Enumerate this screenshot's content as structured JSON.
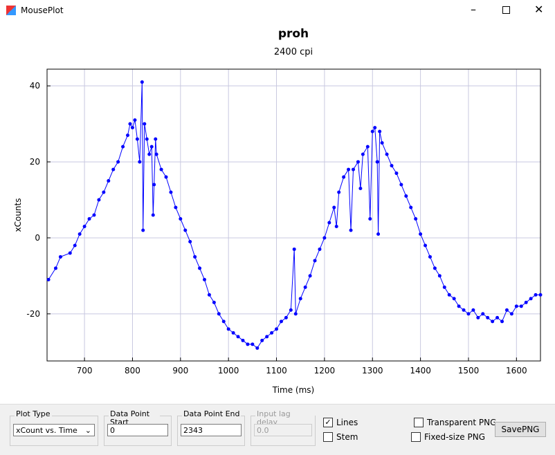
{
  "window": {
    "title": "MousePlot"
  },
  "chart_data": {
    "type": "line",
    "title": "proh",
    "subtitle": "2400 cpi",
    "x_label": "Time (ms)",
    "y_label": "xCounts",
    "x": [
      625,
      640,
      650,
      670,
      680,
      690,
      700,
      710,
      720,
      730,
      740,
      750,
      760,
      770,
      780,
      790,
      795,
      800,
      805,
      810,
      815,
      820,
      822,
      825,
      830,
      835,
      840,
      843,
      845,
      848,
      850,
      860,
      870,
      880,
      890,
      900,
      910,
      920,
      930,
      940,
      950,
      960,
      970,
      980,
      990,
      1000,
      1010,
      1020,
      1030,
      1040,
      1050,
      1060,
      1070,
      1080,
      1090,
      1100,
      1110,
      1120,
      1130,
      1137,
      1140,
      1150,
      1160,
      1170,
      1180,
      1190,
      1200,
      1210,
      1220,
      1225,
      1230,
      1240,
      1250,
      1255,
      1260,
      1270,
      1275,
      1280,
      1290,
      1295,
      1300,
      1305,
      1310,
      1312,
      1315,
      1320,
      1330,
      1340,
      1350,
      1360,
      1370,
      1380,
      1390,
      1400,
      1410,
      1420,
      1430,
      1440,
      1450,
      1460,
      1470,
      1480,
      1490,
      1500,
      1510,
      1520,
      1530,
      1540,
      1550,
      1560,
      1570,
      1580,
      1590,
      1600,
      1610,
      1620,
      1630,
      1640,
      1650
    ],
    "values": [
      -11,
      -8,
      -5,
      -4,
      -2,
      1,
      3,
      5,
      6,
      10,
      12,
      15,
      18,
      20,
      24,
      27,
      30,
      29,
      31,
      26,
      20,
      41,
      2,
      30,
      26,
      22,
      24,
      6,
      14,
      26,
      22,
      18,
      16,
      12,
      8,
      5,
      2,
      -1,
      -5,
      -8,
      -11,
      -15,
      -17,
      -20,
      -22,
      -24,
      -25,
      -26,
      -27,
      -28,
      -28,
      -29,
      -27,
      -26,
      -25,
      -24,
      -22,
      -21,
      -19,
      -3,
      -20,
      -16,
      -13,
      -10,
      -6,
      -3,
      0,
      4,
      8,
      3,
      12,
      16,
      18,
      2,
      18,
      20,
      13,
      22,
      24,
      5,
      28,
      29,
      20,
      1,
      28,
      25,
      22,
      19,
      17,
      14,
      11,
      8,
      5,
      1,
      -2,
      -5,
      -8,
      -10,
      -13,
      -15,
      -16,
      -18,
      -19,
      -20,
      -19,
      -21,
      -20,
      -21,
      -22,
      -21,
      -22,
      -19,
      -20,
      -18,
      -18,
      -17,
      -16,
      -15,
      -15
    ],
    "color": "#0000ff",
    "xlim": [
      622,
      1650
    ],
    "xticks": [
      700,
      800,
      900,
      1000,
      1100,
      1200,
      1300,
      1400,
      1500,
      1600
    ],
    "ylim": [
      -32.4,
      44.4
    ],
    "yticks": [
      -20,
      0,
      20,
      40
    ],
    "grid": true
  },
  "controls": {
    "plot_type": {
      "label": "Plot Type",
      "value": "xCount vs. Time"
    },
    "start": {
      "label": "Data Point Start",
      "value": "0"
    },
    "end": {
      "label": "Data Point End",
      "value": "2343"
    },
    "lag": {
      "label": "Input lag delay",
      "value": "0.0"
    },
    "lines": {
      "label": "Lines",
      "checked": true
    },
    "stem": {
      "label": "Stem",
      "checked": false
    },
    "transparent": {
      "label": "Transparent PNG",
      "checked": false
    },
    "fixed": {
      "label": "Fixed-size PNG",
      "checked": false
    },
    "save": {
      "label": "SavePNG"
    }
  }
}
